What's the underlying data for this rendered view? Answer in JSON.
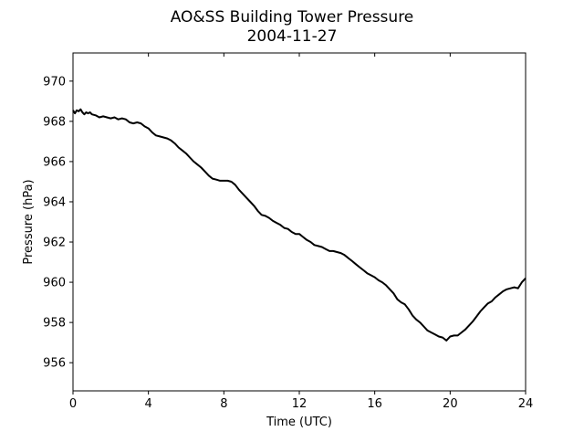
{
  "chart_data": {
    "type": "line",
    "title": "AO&SS Building Tower Pressure",
    "subtitle": "2004-11-27",
    "xlabel": "Time (UTC)",
    "ylabel": "Pressure (hPa)",
    "xlim": [
      0,
      24
    ],
    "ylim": [
      954.6,
      971.4
    ],
    "xticks": [
      0,
      4,
      8,
      12,
      16,
      20,
      24
    ],
    "yticks": [
      956,
      958,
      960,
      962,
      964,
      966,
      968,
      970
    ],
    "grid": false,
    "legend": "none",
    "series": [
      {
        "color": "#000000",
        "x": [
          0,
          0.1,
          0.2,
          0.3,
          0.4,
          0.5,
          0.6,
          0.7,
          0.8,
          0.9,
          1.0,
          1.2,
          1.4,
          1.6,
          1.8,
          2.0,
          2.2,
          2.4,
          2.6,
          2.8,
          3.0,
          3.2,
          3.4,
          3.6,
          3.8,
          4.0,
          4.2,
          4.4,
          4.6,
          4.8,
          5.0,
          5.2,
          5.4,
          5.6,
          5.8,
          6.0,
          6.2,
          6.4,
          6.6,
          6.8,
          7.0,
          7.2,
          7.4,
          7.6,
          7.8,
          8.0,
          8.2,
          8.4,
          8.6,
          8.8,
          9.0,
          9.2,
          9.4,
          9.6,
          9.8,
          10.0,
          10.2,
          10.4,
          10.6,
          10.8,
          11.0,
          11.2,
          11.4,
          11.6,
          11.8,
          12.0,
          12.2,
          12.4,
          12.6,
          12.8,
          13.0,
          13.2,
          13.4,
          13.6,
          13.8,
          14.0,
          14.2,
          14.4,
          14.6,
          14.8,
          15.0,
          15.2,
          15.4,
          15.6,
          15.8,
          16.0,
          16.2,
          16.4,
          16.6,
          16.8,
          17.0,
          17.2,
          17.4,
          17.6,
          17.8,
          18.0,
          18.2,
          18.4,
          18.6,
          18.8,
          19.0,
          19.2,
          19.4,
          19.6,
          19.8,
          20.0,
          20.2,
          20.4,
          20.6,
          20.8,
          21.0,
          21.2,
          21.4,
          21.6,
          21.8,
          22.0,
          22.2,
          22.4,
          22.6,
          22.8,
          23.0,
          23.2,
          23.4,
          23.6,
          23.8,
          24.0
        ],
        "y": [
          968.55,
          968.4,
          968.55,
          968.5,
          968.6,
          968.45,
          968.35,
          968.45,
          968.4,
          968.45,
          968.35,
          968.3,
          968.2,
          968.25,
          968.2,
          968.15,
          968.2,
          968.1,
          968.15,
          968.1,
          967.95,
          967.9,
          967.95,
          967.9,
          967.75,
          967.65,
          967.45,
          967.3,
          967.25,
          967.2,
          967.15,
          967.05,
          966.9,
          966.7,
          966.55,
          966.4,
          966.2,
          966.0,
          965.85,
          965.7,
          965.5,
          965.3,
          965.15,
          965.1,
          965.05,
          965.05,
          965.05,
          965.0,
          964.85,
          964.6,
          964.4,
          964.2,
          964.0,
          963.8,
          963.55,
          963.35,
          963.3,
          963.2,
          963.05,
          962.95,
          962.85,
          962.7,
          962.65,
          962.5,
          962.4,
          962.4,
          962.25,
          962.1,
          962.0,
          961.85,
          961.8,
          961.75,
          961.65,
          961.55,
          961.55,
          961.5,
          961.45,
          961.35,
          961.2,
          961.05,
          960.9,
          960.75,
          960.6,
          960.45,
          960.35,
          960.25,
          960.1,
          960.0,
          959.85,
          959.65,
          959.45,
          959.15,
          959.0,
          958.9,
          958.65,
          958.35,
          958.15,
          958.0,
          957.8,
          957.6,
          957.5,
          957.4,
          957.3,
          957.25,
          957.1,
          957.3,
          957.35,
          957.35,
          957.5,
          957.65,
          957.85,
          958.05,
          958.3,
          958.55,
          958.75,
          958.95,
          959.05,
          959.25,
          959.4,
          959.55,
          959.65,
          959.7,
          959.75,
          959.7,
          960.0,
          960.2
        ]
      }
    ]
  }
}
